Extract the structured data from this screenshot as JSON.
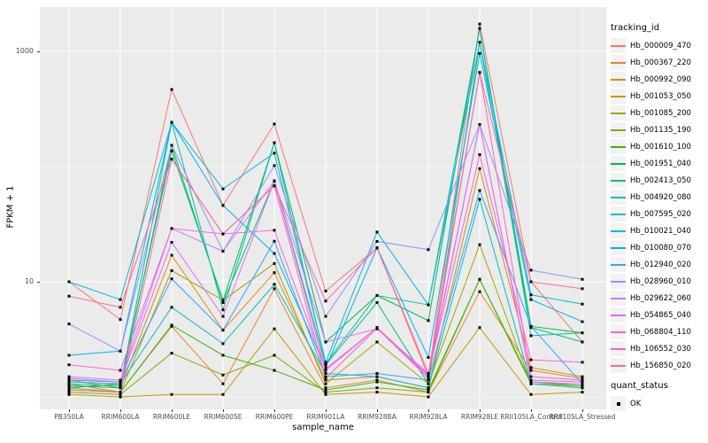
{
  "chart_data": {
    "type": "line",
    "title": "",
    "xlabel": "sample_name",
    "ylabel": "FPKM + 1",
    "y_scale": "log10",
    "ylim": [
      0.8,
      2430
    ],
    "y_ticks": [
      {
        "value": 1000,
        "label": "1000"
      },
      {
        "value": 10,
        "label": "10"
      }
    ],
    "y_minor_gridlines": [
      100,
      1
    ],
    "grid": "on",
    "legend_position": "right",
    "point_shape": "square",
    "point_color": "#000000",
    "categories": [
      "PB350LA",
      "RRIM600LA",
      "RRIM600LE",
      "RRIM600SE",
      "RRIM600PE",
      "RRIM901LA",
      "RRIM928BA",
      "RRIM928LA",
      "RRIM928LE",
      "RRII105LA_Control",
      "RRII105LA_Stressed"
    ],
    "series": [
      {
        "name": "Hb_000009_470",
        "color": "#F8766D",
        "values": [
          10,
          4.7,
          467,
          46,
          234,
          8.3,
          19.7,
          1.5,
          1730,
          10,
          3.0
        ]
      },
      {
        "name": "Hb_000367_220",
        "color": "#EA8331",
        "values": [
          1.3,
          1.1,
          4.1,
          1.3,
          8.7,
          1.2,
          1.4,
          1.1,
          8.2,
          1.7,
          1.45
        ]
      },
      {
        "name": "Hb_000992_090",
        "color": "#D89000",
        "values": [
          1.4,
          1.2,
          17,
          3.8,
          12,
          1.4,
          1.5,
          1.2,
          96,
          1.8,
          1.5
        ]
      },
      {
        "name": "Hb_001053_050",
        "color": "#C09B00",
        "values": [
          1.05,
          1.0,
          1.05,
          1.05,
          3.9,
          1.05,
          1.1,
          1.0,
          4.0,
          1.05,
          1.1
        ]
      },
      {
        "name": "Hb_001085_200",
        "color": "#A3A500",
        "values": [
          1.2,
          1.1,
          12.5,
          6.9,
          14.4,
          1.3,
          3.0,
          1.3,
          21,
          1.3,
          1.25
        ]
      },
      {
        "name": "Hb_001135_190",
        "color": "#7CAE00",
        "values": [
          1.1,
          1.05,
          2.4,
          1.55,
          2.3,
          1.1,
          1.2,
          1.1,
          10.5,
          1.3,
          1.2
        ]
      },
      {
        "name": "Hb_001610_100",
        "color": "#39B600",
        "values": [
          1.15,
          1.1,
          4.2,
          2.3,
          1.7,
          1.15,
          1.35,
          1.15,
          10.5,
          1.35,
          1.25
        ]
      },
      {
        "name": "Hb_001951_040",
        "color": "#00BB4E",
        "values": [
          1.2,
          1.3,
          137,
          6.9,
          161,
          3.0,
          7.6,
          4.6,
          1580,
          4.1,
          3.6
        ]
      },
      {
        "name": "Hb_002413_050",
        "color": "#00BF7D",
        "values": [
          1.25,
          1.2,
          153,
          6.6,
          75,
          1.9,
          6.6,
          1.3,
          1200,
          4.0,
          3.0
        ]
      },
      {
        "name": "Hb_004920_080",
        "color": "#00C1A3",
        "values": [
          1.3,
          1.25,
          242,
          5.7,
          161,
          1.95,
          7.6,
          6.3,
          1580,
          3.4,
          3.6
        ]
      },
      {
        "name": "Hb_007595_020",
        "color": "#00BFC4",
        "values": [
          1.35,
          1.3,
          6.0,
          2.9,
          9.5,
          1.6,
          1.5,
          1.2,
          52,
          1.3,
          1.2
        ]
      },
      {
        "name": "Hb_010021_040",
        "color": "#00BAE0",
        "values": [
          10,
          7.0,
          242,
          64,
          131,
          2.0,
          27,
          6.3,
          1200,
          7.7,
          6.4
        ]
      },
      {
        "name": "Hb_010080_070",
        "color": "#00B0F6",
        "values": [
          2.3,
          2.5,
          242,
          46,
          17.6,
          1.8,
          19.7,
          2.2,
          960,
          7.0,
          4.5
        ]
      },
      {
        "name": "Hb_012940_020",
        "color": "#35A2FF",
        "values": [
          1.4,
          1.35,
          10.6,
          3.8,
          22.5,
          1.5,
          1.6,
          1.4,
          62,
          4.1,
          1.3
        ]
      },
      {
        "name": "Hb_028960_010",
        "color": "#9590FF",
        "values": [
          4.3,
          2.5,
          153,
          18.4,
          102,
          5.0,
          22.4,
          19,
          232,
          12.6,
          10.5
        ]
      },
      {
        "name": "Hb_029622_060",
        "color": "#C77CFF",
        "values": [
          1.5,
          1.4,
          29,
          18.4,
          75,
          3.0,
          3.9,
          1.6,
          232,
          1.35,
          1.3
        ]
      },
      {
        "name": "Hb_054865_040",
        "color": "#E76BF3",
        "values": [
          1.45,
          1.35,
          22,
          5.0,
          75,
          1.7,
          4.0,
          1.5,
          232,
          1.4,
          1.35
        ]
      },
      {
        "name": "Hb_068804_110",
        "color": "#FA62DB",
        "values": [
          1.9,
          1.7,
          29,
          26,
          28,
          1.75,
          4.0,
          1.55,
          127,
          2.1,
          2.0
        ]
      },
      {
        "name": "Hb_106552_030",
        "color": "#FF62BC",
        "values": [
          1.15,
          1.1,
          116,
          26,
          68,
          1.45,
          3.95,
          1.45,
          656,
          1.5,
          1.4
        ]
      },
      {
        "name": "Hb_156850_020",
        "color": "#FF6A98",
        "values": [
          7.5,
          6.0,
          116,
          26,
          68,
          6.8,
          19.7,
          1.6,
          656,
          10,
          8.7
        ]
      }
    ],
    "legend": {
      "tracking_title": "tracking_id",
      "quant_title": "quant_status",
      "quant_items": [
        {
          "label": "OK",
          "marker": "black-square"
        }
      ]
    }
  },
  "colors": {
    "panel_bg": "#EBEBEB",
    "gridline": "#FFFFFF",
    "legend_key_bg": "#F2F2F2",
    "tick_text": "#4D4D4D",
    "title_text": "#000000"
  }
}
